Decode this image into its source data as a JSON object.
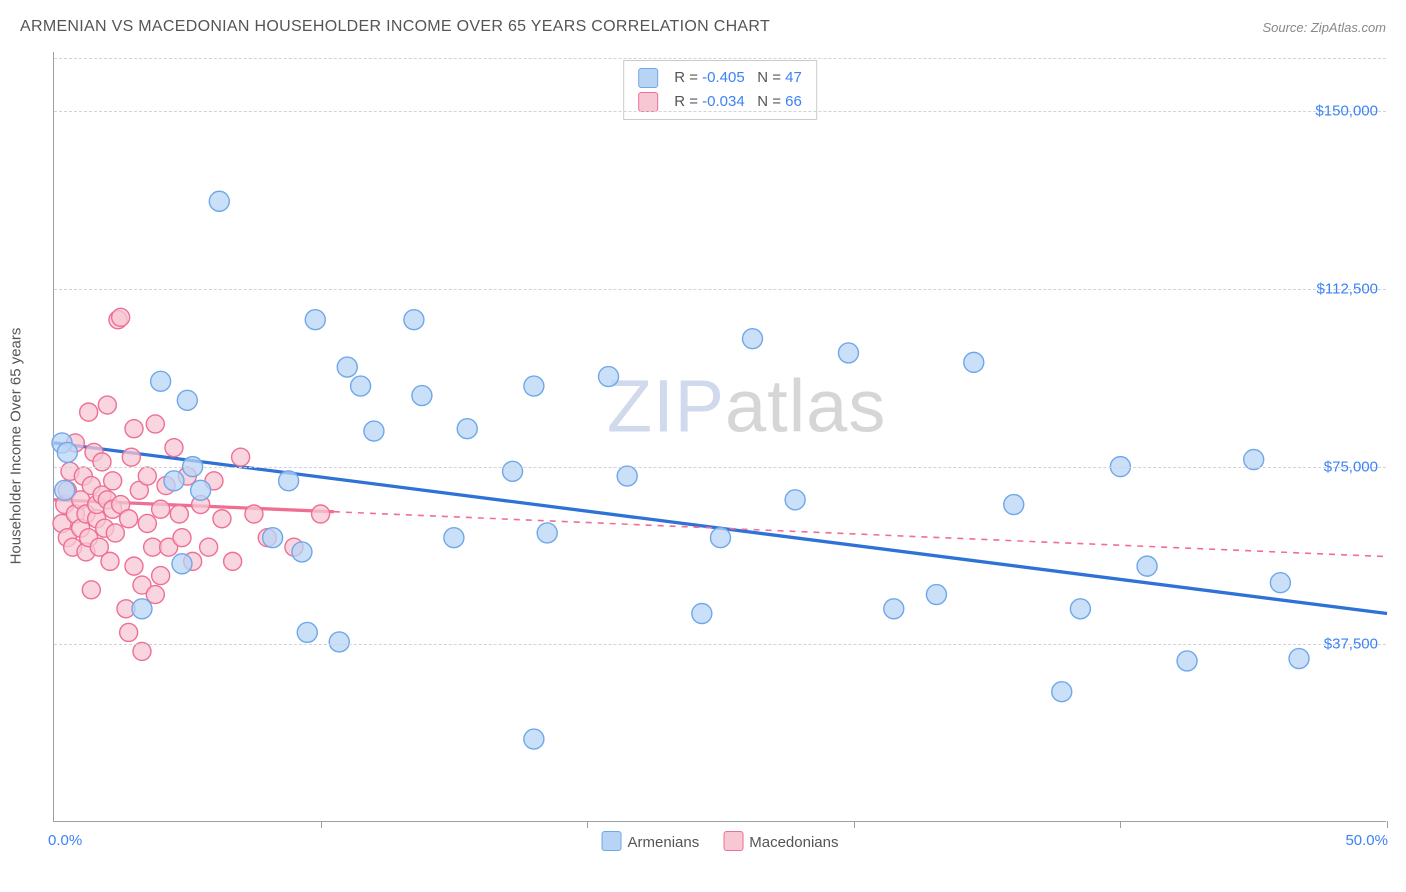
{
  "title": "ARMENIAN VS MACEDONIAN HOUSEHOLDER INCOME OVER 65 YEARS CORRELATION CHART",
  "source_label": "Source: ZipAtlas.com",
  "y_axis_label": "Householder Income Over 65 years",
  "watermark": {
    "prefix": "ZIP",
    "suffix": "atlas"
  },
  "chart": {
    "type": "scatter",
    "xlim": [
      0,
      50
    ],
    "ylim": [
      0,
      162500
    ],
    "x_tick_step": 10,
    "x_tick_labels": {
      "0": "0.0%",
      "50": "50.0%"
    },
    "y_ticks": [
      37500,
      75000,
      112500,
      150000
    ],
    "y_tick_labels": [
      "$37,500",
      "$75,000",
      "$112,500",
      "$150,000"
    ],
    "grid_color": "#d0d3d7",
    "axis_color": "#9aa0a6",
    "background_color": "#ffffff",
    "tick_label_color": "#3b82f6",
    "series": [
      {
        "name": "Armenians",
        "fill": "#b8d4f5",
        "stroke": "#6fa8e8",
        "marker_radius": 10,
        "regression": {
          "y_at_x0": 80000,
          "y_at_x50": 44000,
          "solid_until_x": 50,
          "R": "-0.405",
          "N": "47"
        },
        "line_color": "#2f72d6",
        "points": [
          [
            0.3,
            80000
          ],
          [
            0.4,
            70000
          ],
          [
            0.5,
            78000
          ],
          [
            3.3,
            45000
          ],
          [
            4.0,
            93000
          ],
          [
            4.5,
            72000
          ],
          [
            4.8,
            54500
          ],
          [
            5.0,
            89000
          ],
          [
            5.2,
            75000
          ],
          [
            5.5,
            70000
          ],
          [
            6.2,
            131000
          ],
          [
            8.2,
            60000
          ],
          [
            8.8,
            72000
          ],
          [
            9.5,
            40000
          ],
          [
            9.8,
            106000
          ],
          [
            12.0,
            82500
          ],
          [
            11.0,
            96000
          ],
          [
            11.5,
            92000
          ],
          [
            9.3,
            57000
          ],
          [
            10.7,
            38000
          ],
          [
            13.5,
            106000
          ],
          [
            13.8,
            90000
          ],
          [
            15.0,
            60000
          ],
          [
            15.5,
            83000
          ],
          [
            17.2,
            74000
          ],
          [
            18.0,
            92000
          ],
          [
            18.0,
            17500
          ],
          [
            18.5,
            61000
          ],
          [
            20.8,
            94000
          ],
          [
            21.5,
            73000
          ],
          [
            24.3,
            44000
          ],
          [
            25.0,
            60000
          ],
          [
            26.2,
            102000
          ],
          [
            27.8,
            68000
          ],
          [
            29.8,
            99000
          ],
          [
            31.5,
            45000
          ],
          [
            33.1,
            48000
          ],
          [
            34.5,
            97000
          ],
          [
            36.0,
            67000
          ],
          [
            37.8,
            27500
          ],
          [
            38.5,
            45000
          ],
          [
            40.0,
            75000
          ],
          [
            41.0,
            54000
          ],
          [
            42.5,
            34000
          ],
          [
            45.0,
            76500
          ],
          [
            46.0,
            50500
          ],
          [
            46.7,
            34500
          ]
        ]
      },
      {
        "name": "Macedonians",
        "fill": "#f7c7d4",
        "stroke": "#ef6f94",
        "marker_radius": 9,
        "regression": {
          "y_at_x0": 68000,
          "y_at_x50": 56000,
          "solid_until_x": 10.5,
          "R": "-0.034",
          "N": "66"
        },
        "line_color": "#ef6f94",
        "points": [
          [
            0.3,
            63000
          ],
          [
            0.4,
            67000
          ],
          [
            0.5,
            70000
          ],
          [
            0.5,
            60000
          ],
          [
            0.6,
            74000
          ],
          [
            0.7,
            58000
          ],
          [
            0.8,
            65000
          ],
          [
            0.8,
            80000
          ],
          [
            1.0,
            62000
          ],
          [
            1.0,
            68000
          ],
          [
            1.1,
            73000
          ],
          [
            1.2,
            57000
          ],
          [
            1.2,
            65000
          ],
          [
            1.3,
            86500
          ],
          [
            1.3,
            60000
          ],
          [
            1.4,
            71000
          ],
          [
            1.4,
            49000
          ],
          [
            1.5,
            78000
          ],
          [
            1.6,
            64000
          ],
          [
            1.6,
            67000
          ],
          [
            1.7,
            58000
          ],
          [
            1.8,
            69000
          ],
          [
            1.8,
            76000
          ],
          [
            1.9,
            62000
          ],
          [
            2.0,
            68000
          ],
          [
            2.0,
            88000
          ],
          [
            2.1,
            55000
          ],
          [
            2.2,
            66000
          ],
          [
            2.2,
            72000
          ],
          [
            2.3,
            61000
          ],
          [
            2.4,
            106000
          ],
          [
            2.5,
            106500
          ],
          [
            2.5,
            67000
          ],
          [
            2.7,
            45000
          ],
          [
            2.8,
            64000
          ],
          [
            2.8,
            40000
          ],
          [
            2.9,
            77000
          ],
          [
            3.0,
            83000
          ],
          [
            3.0,
            54000
          ],
          [
            3.2,
            70000
          ],
          [
            3.3,
            50000
          ],
          [
            3.3,
            36000
          ],
          [
            3.5,
            63000
          ],
          [
            3.5,
            73000
          ],
          [
            3.7,
            58000
          ],
          [
            3.8,
            48000
          ],
          [
            3.8,
            84000
          ],
          [
            4.0,
            66000
          ],
          [
            4.0,
            52000
          ],
          [
            4.2,
            71000
          ],
          [
            4.3,
            58000
          ],
          [
            4.5,
            79000
          ],
          [
            4.7,
            65000
          ],
          [
            4.8,
            60000
          ],
          [
            5.0,
            73000
          ],
          [
            5.2,
            55000
          ],
          [
            5.5,
            67000
          ],
          [
            5.8,
            58000
          ],
          [
            6.0,
            72000
          ],
          [
            6.3,
            64000
          ],
          [
            6.7,
            55000
          ],
          [
            7.0,
            77000
          ],
          [
            7.5,
            65000
          ],
          [
            8.0,
            60000
          ],
          [
            9.0,
            58000
          ],
          [
            10.0,
            65000
          ]
        ]
      }
    ],
    "bottom_legend": [
      {
        "label": "Armenians",
        "fill": "#b8d4f5",
        "stroke": "#6fa8e8"
      },
      {
        "label": "Macedonians",
        "fill": "#f7c7d4",
        "stroke": "#ef6f94"
      }
    ]
  }
}
